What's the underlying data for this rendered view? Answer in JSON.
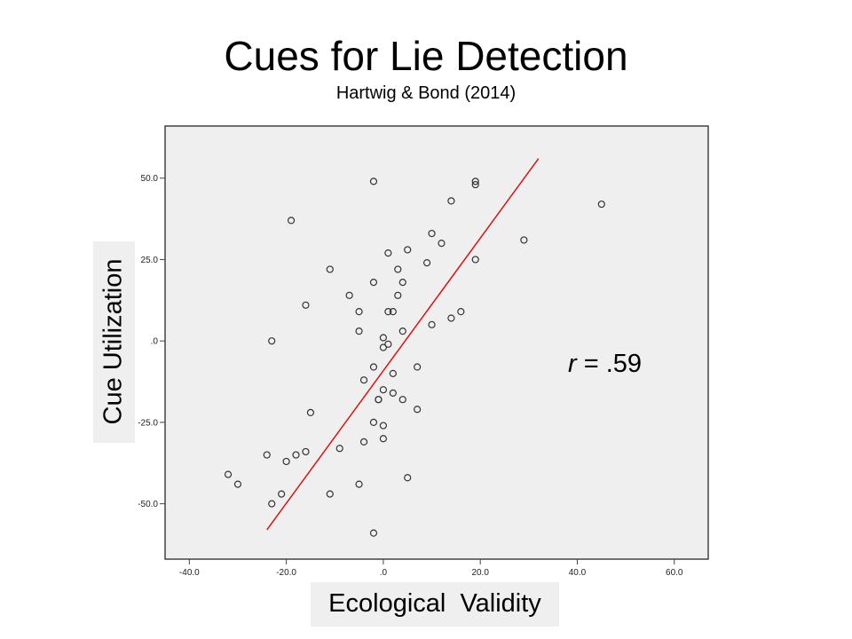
{
  "chart_data": {
    "type": "scatter",
    "title": "Cues for Lie Detection",
    "subtitle": "Hartwig & Bond (2014)",
    "xlabel": "Ecological  Validity",
    "ylabel": "Cue Utilization",
    "xlim": [
      -45,
      67
    ],
    "ylim": [
      -67,
      66
    ],
    "x_ticks": [
      -40,
      -20,
      0,
      20,
      40,
      60
    ],
    "x_tick_labels": [
      "-40.0",
      "-20.0",
      ".0",
      "20.0",
      "40.0",
      "60.0"
    ],
    "y_ticks": [
      50,
      25,
      0,
      -25,
      -50
    ],
    "y_tick_labels": [
      "50.0",
      "25.0",
      ".0",
      "-25.0",
      "-50.0"
    ],
    "grid": false,
    "annotation": {
      "r_symbol": "r",
      "text": " = .59"
    },
    "fit_line": {
      "x": [
        -24,
        32
      ],
      "y": [
        -58,
        56
      ],
      "color": "#dd1111"
    },
    "point_color": "#333333",
    "background_color": "#efefef",
    "points": [
      {
        "x": -2,
        "y": 49
      },
      {
        "x": 19,
        "y": 49
      },
      {
        "x": 19,
        "y": 48
      },
      {
        "x": 14,
        "y": 43
      },
      {
        "x": 45,
        "y": 42
      },
      {
        "x": -19,
        "y": 37
      },
      {
        "x": 10,
        "y": 33
      },
      {
        "x": 29,
        "y": 31
      },
      {
        "x": 12,
        "y": 30
      },
      {
        "x": 5,
        "y": 28
      },
      {
        "x": 1,
        "y": 27
      },
      {
        "x": 19,
        "y": 25
      },
      {
        "x": 9,
        "y": 24
      },
      {
        "x": -11,
        "y": 22
      },
      {
        "x": 3,
        "y": 22
      },
      {
        "x": -2,
        "y": 18
      },
      {
        "x": 4,
        "y": 18
      },
      {
        "x": -7,
        "y": 14
      },
      {
        "x": 3,
        "y": 14
      },
      {
        "x": -16,
        "y": 11
      },
      {
        "x": -5,
        "y": 9
      },
      {
        "x": 1,
        "y": 9
      },
      {
        "x": 2,
        "y": 9
      },
      {
        "x": 16,
        "y": 9
      },
      {
        "x": 14,
        "y": 7
      },
      {
        "x": 10,
        "y": 5
      },
      {
        "x": -5,
        "y": 3
      },
      {
        "x": 4,
        "y": 3
      },
      {
        "x": -23,
        "y": 0
      },
      {
        "x": 0,
        "y": 1
      },
      {
        "x": 1,
        "y": -1
      },
      {
        "x": 0,
        "y": -2
      },
      {
        "x": -2,
        "y": -8
      },
      {
        "x": 7,
        "y": -8
      },
      {
        "x": 2,
        "y": -10
      },
      {
        "x": -4,
        "y": -12
      },
      {
        "x": 0,
        "y": -15
      },
      {
        "x": 2,
        "y": -16
      },
      {
        "x": -1,
        "y": -18
      },
      {
        "x": -1,
        "y": -18
      },
      {
        "x": 4,
        "y": -18
      },
      {
        "x": 7,
        "y": -21
      },
      {
        "x": -15,
        "y": -22
      },
      {
        "x": -2,
        "y": -25
      },
      {
        "x": 0,
        "y": -26
      },
      {
        "x": 0,
        "y": -30
      },
      {
        "x": -4,
        "y": -31
      },
      {
        "x": -9,
        "y": -33
      },
      {
        "x": -16,
        "y": -34
      },
      {
        "x": -24,
        "y": -35
      },
      {
        "x": -18,
        "y": -35
      },
      {
        "x": -20,
        "y": -37
      },
      {
        "x": -32,
        "y": -41
      },
      {
        "x": 5,
        "y": -42
      },
      {
        "x": -30,
        "y": -44
      },
      {
        "x": -5,
        "y": -44
      },
      {
        "x": -21,
        "y": -47
      },
      {
        "x": -11,
        "y": -47
      },
      {
        "x": -23,
        "y": -50
      },
      {
        "x": -2,
        "y": -59
      }
    ]
  }
}
